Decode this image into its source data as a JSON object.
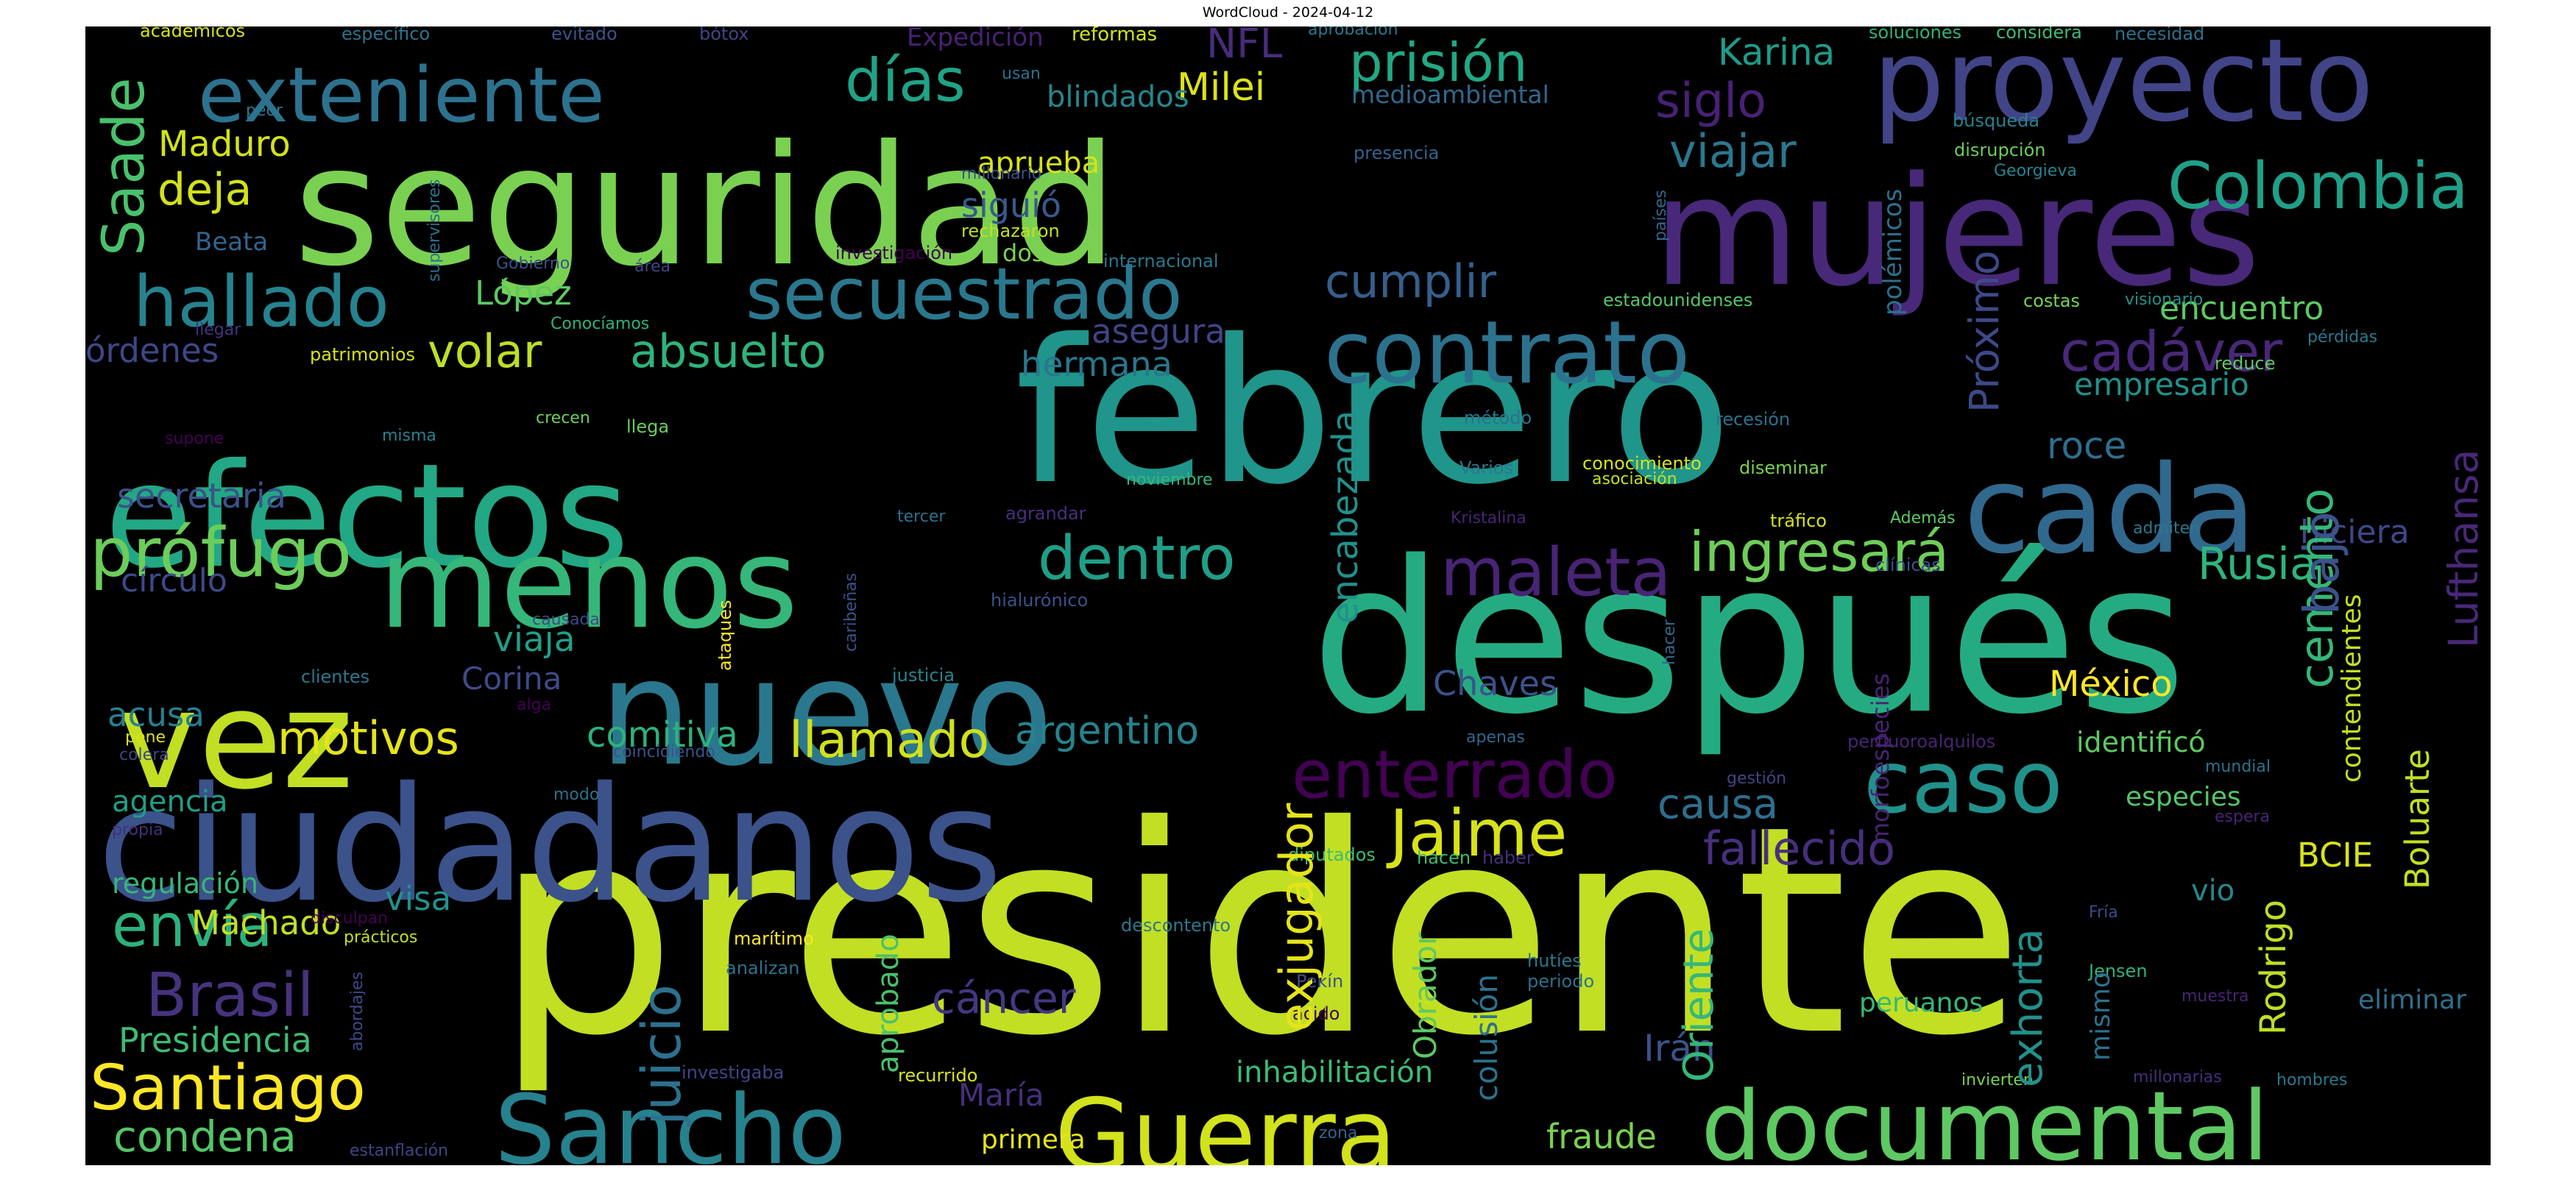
{
  "title": "WordCloud - 2024-04-12",
  "colors": {
    "background": "#000000",
    "page": "#ffffff"
  },
  "words": [
    {
      "text": "presidente",
      "color": "#c2df23",
      "vertical": false
    },
    {
      "text": "después",
      "color": "#25ab82",
      "vertical": false
    },
    {
      "text": "febrero",
      "color": "#1f958b",
      "vertical": false
    },
    {
      "text": "seguridad",
      "color": "#7ad151",
      "vertical": false
    },
    {
      "text": "ciudadanos",
      "color": "#3b528b",
      "vertical": false
    },
    {
      "text": "mujeres",
      "color": "#482878",
      "vertical": false
    },
    {
      "text": "efectos",
      "color": "#22a884",
      "vertical": false
    },
    {
      "text": "nuevo",
      "color": "#2a788e",
      "vertical": false
    },
    {
      "text": "menos",
      "color": "#35b779",
      "vertical": false
    },
    {
      "text": "vez",
      "color": "#c2df23",
      "vertical": false
    },
    {
      "text": "cada",
      "color": "#31688e",
      "vertical": false
    },
    {
      "text": "proyecto",
      "color": "#414487",
      "vertical": false
    },
    {
      "text": "documental",
      "color": "#5ec962",
      "vertical": false
    },
    {
      "text": "Guerra",
      "color": "#d2e21b",
      "vertical": false
    },
    {
      "text": "Sancho",
      "color": "#26828e",
      "vertical": false
    },
    {
      "text": "contrato",
      "color": "#2c728e",
      "vertical": false
    },
    {
      "text": "caso",
      "color": "#21918c",
      "vertical": false
    },
    {
      "text": "exteniente",
      "color": "#2c728e",
      "vertical": false
    },
    {
      "text": "secuestrado",
      "color": "#2a788e",
      "vertical": false
    },
    {
      "text": "días",
      "color": "#20a386",
      "vertical": false
    },
    {
      "text": "hallado",
      "color": "#26828e",
      "vertical": false
    },
    {
      "text": "maleta",
      "color": "#482475",
      "vertical": false
    },
    {
      "text": "Colombia",
      "color": "#1fa088",
      "vertical": false
    },
    {
      "text": "prófugo",
      "color": "#6ccd5a",
      "vertical": false
    },
    {
      "text": "enterrado",
      "color": "#440154",
      "vertical": false
    },
    {
      "text": "Jaime",
      "color": "#d8e219",
      "vertical": false
    },
    {
      "text": "dentro",
      "color": "#1f9f88",
      "vertical": false
    },
    {
      "text": "Santiago",
      "color": "#fde725",
      "vertical": false
    },
    {
      "text": "Brasil",
      "color": "#46337e",
      "vertical": false
    },
    {
      "text": "envía",
      "color": "#2db27d",
      "vertical": false
    },
    {
      "text": "cadáver",
      "color": "#482878",
      "vertical": false
    },
    {
      "text": "ingresará",
      "color": "#6ece58",
      "vertical": false
    },
    {
      "text": "llamado",
      "color": "#d0e11c",
      "vertical": false
    },
    {
      "text": "motivos",
      "color": "#e5e419",
      "vertical": false
    },
    {
      "text": "prisión",
      "color": "#22a884",
      "vertical": false
    },
    {
      "text": "absuelto",
      "color": "#2eb37c",
      "vertical": false
    },
    {
      "text": "volar",
      "color": "#bddf26",
      "vertical": false
    },
    {
      "text": "cumplir",
      "color": "#355f8d",
      "vertical": false
    },
    {
      "text": "fallecido",
      "color": "#472f7d",
      "vertical": false
    },
    {
      "text": "viajar",
      "color": "#2a788e",
      "vertical": false
    },
    {
      "text": "Rusia",
      "color": "#2fb47c",
      "vertical": false
    },
    {
      "text": "causa",
      "color": "#2e6e8e",
      "vertical": false
    },
    {
      "text": "deja",
      "color": "#d2e21b",
      "vertical": false
    },
    {
      "text": "siglo",
      "color": "#482173",
      "vertical": false
    },
    {
      "text": "Karina",
      "color": "#1e9b8a",
      "vertical": false
    },
    {
      "text": "Milei",
      "color": "#dde318",
      "vertical": false
    },
    {
      "text": "NFL",
      "color": "#472d7b",
      "vertical": false
    },
    {
      "text": "condena",
      "color": "#54c568",
      "vertical": false
    },
    {
      "text": "Presidencia",
      "color": "#3dbc74",
      "vertical": false
    },
    {
      "text": "Machado",
      "color": "#c2df23",
      "vertical": false
    },
    {
      "text": "cáncer",
      "color": "#453781",
      "vertical": false
    },
    {
      "text": "comitiva",
      "color": "#2db27d",
      "vertical": false
    },
    {
      "text": "argentino",
      "color": "#25848e",
      "vertical": false
    },
    {
      "text": "acusa",
      "color": "#277f8e",
      "vertical": false
    },
    {
      "text": "viaja",
      "color": "#1fa088",
      "vertical": false
    },
    {
      "text": "secretaria",
      "color": "#3b528b",
      "vertical": false
    },
    {
      "text": "círculo",
      "color": "#3e4989",
      "vertical": false
    },
    {
      "text": "órdenes",
      "color": "#3f4788",
      "vertical": false
    },
    {
      "text": "López",
      "color": "#5ec962",
      "vertical": false
    },
    {
      "text": "Maduro",
      "color": "#d2e21b",
      "vertical": false
    },
    {
      "text": "hermana",
      "color": "#2a768e",
      "vertical": false
    },
    {
      "text": "asegura",
      "color": "#414487",
      "vertical": false
    },
    {
      "text": "siguió",
      "color": "#38598c",
      "vertical": false
    },
    {
      "text": "aprueba",
      "color": "#d5e21a",
      "vertical": false
    },
    {
      "text": "blindados",
      "color": "#24878e",
      "vertical": false
    },
    {
      "text": "empresario",
      "color": "#20928c",
      "vertical": false
    },
    {
      "text": "encuentro",
      "color": "#5ec962",
      "vertical": false
    },
    {
      "text": "roce",
      "color": "#2e6e8e",
      "vertical": false
    },
    {
      "text": "hiciera",
      "color": "#3f4788",
      "vertical": false
    },
    {
      "text": "México",
      "color": "#fde725",
      "vertical": false
    },
    {
      "text": "identificó",
      "color": "#5ec962",
      "vertical": false
    },
    {
      "text": "especies",
      "color": "#54c568",
      "vertical": false
    },
    {
      "text": "BCIE",
      "color": "#d8e219",
      "vertical": false
    },
    {
      "text": "Chaves",
      "color": "#3b528b",
      "vertical": false
    },
    {
      "text": "Corina",
      "color": "#3e4a89",
      "vertical": false
    },
    {
      "text": "visa",
      "color": "#21918c",
      "vertical": false
    },
    {
      "text": "agencia",
      "color": "#1f9f88",
      "vertical": false
    },
    {
      "text": "regulación",
      "color": "#35b779",
      "vertical": false
    },
    {
      "text": "inhabilitación",
      "color": "#3dbc74",
      "vertical": false
    },
    {
      "text": "Irán",
      "color": "#3b528b",
      "vertical": false
    },
    {
      "text": "fraude",
      "color": "#7ad151",
      "vertical": false
    },
    {
      "text": "María",
      "color": "#472f7d",
      "vertical": false
    },
    {
      "text": "primera",
      "color": "#e5e419",
      "vertical": false
    },
    {
      "text": "peruanos",
      "color": "#35b779",
      "vertical": false
    },
    {
      "text": "vio",
      "color": "#23888e",
      "vertical": false
    },
    {
      "text": "eliminar",
      "color": "#2c718e",
      "vertical": false
    },
    {
      "text": "Beata",
      "color": "#32648e",
      "vertical": false
    },
    {
      "text": "académicos",
      "color": "#d8e219",
      "vertical": false
    },
    {
      "text": "específico",
      "color": "#2c728e",
      "vertical": false
    },
    {
      "text": "evitado",
      "color": "#3b528b",
      "vertical": false
    },
    {
      "text": "bótox",
      "color": "#414487",
      "vertical": false
    },
    {
      "text": "Expedición",
      "color": "#482173",
      "vertical": false
    },
    {
      "text": "reformas",
      "color": "#d2e21b",
      "vertical": false
    },
    {
      "text": "aprobación",
      "color": "#2a788e",
      "vertical": false
    },
    {
      "text": "soluciones",
      "color": "#2eb37c",
      "vertical": false
    },
    {
      "text": "considera",
      "color": "#3dbc74",
      "vertical": false
    },
    {
      "text": "necesidad",
      "color": "#2c718e",
      "vertical": false
    },
    {
      "text": "usan",
      "color": "#2c718e",
      "vertical": false
    },
    {
      "text": "medioambiental",
      "color": "#31688e",
      "vertical": false
    },
    {
      "text": "peor",
      "color": "#2a788e",
      "vertical": false
    },
    {
      "text": "búsqueda",
      "color": "#26828e",
      "vertical": false
    },
    {
      "text": "disrupción",
      "color": "#6ccd5a",
      "vertical": false
    },
    {
      "text": "Georgieva",
      "color": "#25848e",
      "vertical": false
    },
    {
      "text": "millonario",
      "color": "#3b528b",
      "vertical": false
    },
    {
      "text": "presencia",
      "color": "#32648e",
      "vertical": false
    },
    {
      "text": "rechazaron",
      "color": "#c2df23",
      "vertical": false
    },
    {
      "text": "internacional",
      "color": "#2a788e",
      "vertical": false
    },
    {
      "text": "dos",
      "color": "#7ad151",
      "vertical": false
    },
    {
      "text": "investigación",
      "color": "#440154",
      "vertical": false
    },
    {
      "text": "Gobierno",
      "color": "#3b528b",
      "vertical": false
    },
    {
      "text": "área",
      "color": "#414487",
      "vertical": false
    },
    {
      "text": "estadounidenses",
      "color": "#54c568",
      "vertical": false
    },
    {
      "text": "costas",
      "color": "#7ad151",
      "vertical": false
    },
    {
      "text": "visionario",
      "color": "#21918c",
      "vertical": false
    },
    {
      "text": "llegar",
      "color": "#46337e",
      "vertical": false
    },
    {
      "text": "patrimonios",
      "color": "#d8e219",
      "vertical": false
    },
    {
      "text": "Conocíamos",
      "color": "#2eb37c",
      "vertical": false
    },
    {
      "text": "pérdidas",
      "color": "#2a788e",
      "vertical": false
    },
    {
      "text": "reduce",
      "color": "#5ec962",
      "vertical": false
    },
    {
      "text": "supone",
      "color": "#440154",
      "vertical": false
    },
    {
      "text": "misma",
      "color": "#26828e",
      "vertical": false
    },
    {
      "text": "crecen",
      "color": "#6ece58",
      "vertical": false
    },
    {
      "text": "llega",
      "color": "#6ccd5a",
      "vertical": false
    },
    {
      "text": "método",
      "color": "#2c718e",
      "vertical": false
    },
    {
      "text": "recesión",
      "color": "#2c718e",
      "vertical": false
    },
    {
      "text": "Varios",
      "color": "#2a788e",
      "vertical": false
    },
    {
      "text": "conocimiento",
      "color": "#d8e219",
      "vertical": false
    },
    {
      "text": "asociación",
      "color": "#c2df23",
      "vertical": false
    },
    {
      "text": "diseminar",
      "color": "#7ad151",
      "vertical": false
    },
    {
      "text": "noviembre",
      "color": "#35b779",
      "vertical": false
    },
    {
      "text": "agrandar",
      "color": "#472f7d",
      "vertical": false
    },
    {
      "text": "tercer",
      "color": "#2c718e",
      "vertical": false
    },
    {
      "text": "Kristalina",
      "color": "#482475",
      "vertical": false
    },
    {
      "text": "tráfico",
      "color": "#d8e219",
      "vertical": false
    },
    {
      "text": "Además",
      "color": "#5ec962",
      "vertical": false
    },
    {
      "text": "admiten",
      "color": "#2a788e",
      "vertical": false
    },
    {
      "text": "clínicas",
      "color": "#3b528b",
      "vertical": false
    },
    {
      "text": "hialurónico",
      "color": "#3b528b",
      "vertical": false
    },
    {
      "text": "causada",
      "color": "#3e4989",
      "vertical": false
    },
    {
      "text": "clientes",
      "color": "#2a788e",
      "vertical": false
    },
    {
      "text": "justicia",
      "color": "#25848e",
      "vertical": false
    },
    {
      "text": "alga",
      "color": "#440154",
      "vertical": false
    },
    {
      "text": "pene",
      "color": "#d8e219",
      "vertical": false
    },
    {
      "text": "colera",
      "color": "#414487",
      "vertical": false
    },
    {
      "text": "coincidiendo",
      "color": "#3b528b",
      "vertical": false
    },
    {
      "text": "apenas",
      "color": "#31688e",
      "vertical": false
    },
    {
      "text": "perfluoroalquilos",
      "color": "#482475",
      "vertical": false
    },
    {
      "text": "gestión",
      "color": "#414487",
      "vertical": false
    },
    {
      "text": "modo",
      "color": "#2c718e",
      "vertical": false
    },
    {
      "text": "propia",
      "color": "#472f7d",
      "vertical": false
    },
    {
      "text": "mundial",
      "color": "#2c728e",
      "vertical": false
    },
    {
      "text": "espera",
      "color": "#482475",
      "vertical": false
    },
    {
      "text": "diputados",
      "color": "#3dbc74",
      "vertical": false
    },
    {
      "text": "hacen",
      "color": "#3dbc74",
      "vertical": false
    },
    {
      "text": "haber",
      "color": "#472f7d",
      "vertical": false
    },
    {
      "text": "Fría",
      "color": "#3e4989",
      "vertical": false
    },
    {
      "text": "disculpan",
      "color": "#440154",
      "vertical": false
    },
    {
      "text": "prácticos",
      "color": "#c2df23",
      "vertical": false
    },
    {
      "text": "marítimo",
      "color": "#fde725",
      "vertical": false
    },
    {
      "text": "descontento",
      "color": "#2a788e",
      "vertical": false
    },
    {
      "text": "analizan",
      "color": "#2c718e",
      "vertical": false
    },
    {
      "text": "hutíes",
      "color": "#2a788e",
      "vertical": false
    },
    {
      "text": "periodo",
      "color": "#2c718e",
      "vertical": false
    },
    {
      "text": "Pekín",
      "color": "#3b528b",
      "vertical": false
    },
    {
      "text": "ácido",
      "color": "#440154",
      "vertical": false
    },
    {
      "text": "Jensen",
      "color": "#2eb37c",
      "vertical": false
    },
    {
      "text": "muestra",
      "color": "#482475",
      "vertical": false
    },
    {
      "text": "investigaba",
      "color": "#414487",
      "vertical": false
    },
    {
      "text": "recurrido",
      "color": "#d8e219",
      "vertical": false
    },
    {
      "text": "invierten",
      "color": "#7ad151",
      "vertical": false
    },
    {
      "text": "millonarias",
      "color": "#472f7d",
      "vertical": false
    },
    {
      "text": "hombres",
      "color": "#2a788e",
      "vertical": false
    },
    {
      "text": "zona",
      "color": "#32648e",
      "vertical": false
    },
    {
      "text": "estanflación",
      "color": "#414487",
      "vertical": false
    },
    {
      "text": "Saade",
      "color": "#4ac16d",
      "vertical": true
    },
    {
      "text": "juicio",
      "color": "#2c718e",
      "vertical": true
    },
    {
      "text": "exjugador",
      "color": "#e5e419",
      "vertical": true
    },
    {
      "text": "encabezada",
      "color": "#21918c",
      "vertical": true
    },
    {
      "text": "Próximo",
      "color": "#3e4989",
      "vertical": true
    },
    {
      "text": "cemento",
      "color": "#35b779",
      "vertical": true
    },
    {
      "text": "bajo",
      "color": "#3b528b",
      "vertical": true
    },
    {
      "text": "Lufthansa",
      "color": "#482878",
      "vertical": true
    },
    {
      "text": "Boluarte",
      "color": "#c2df23",
      "vertical": true
    },
    {
      "text": "Rodrigo",
      "color": "#bddf26",
      "vertical": true
    },
    {
      "text": "exhorta",
      "color": "#21918c",
      "vertical": true
    },
    {
      "text": "Oriente",
      "color": "#35b779",
      "vertical": true
    },
    {
      "text": "colusión",
      "color": "#2c728e",
      "vertical": true
    },
    {
      "text": "Obrador",
      "color": "#5ec962",
      "vertical": true
    },
    {
      "text": "aprobado",
      "color": "#4ac16d",
      "vertical": true
    },
    {
      "text": "mismo",
      "color": "#2c718e",
      "vertical": true
    },
    {
      "text": "contendientes",
      "color": "#c2df23",
      "vertical": true
    },
    {
      "text": "polémicos",
      "color": "#2c718e",
      "vertical": true
    },
    {
      "text": "morfoespecies",
      "color": "#482475",
      "vertical": true
    },
    {
      "text": "supervisores",
      "color": "#2c718e",
      "vertical": true
    },
    {
      "text": "países",
      "color": "#31688e",
      "vertical": true
    },
    {
      "text": "caribeñas",
      "color": "#3b528b",
      "vertical": true
    },
    {
      "text": "ataques",
      "color": "#fde725",
      "vertical": true
    },
    {
      "text": "hacer",
      "color": "#31688e",
      "vertical": true
    },
    {
      "text": "abordajes",
      "color": "#3e4989",
      "vertical": true
    }
  ]
}
